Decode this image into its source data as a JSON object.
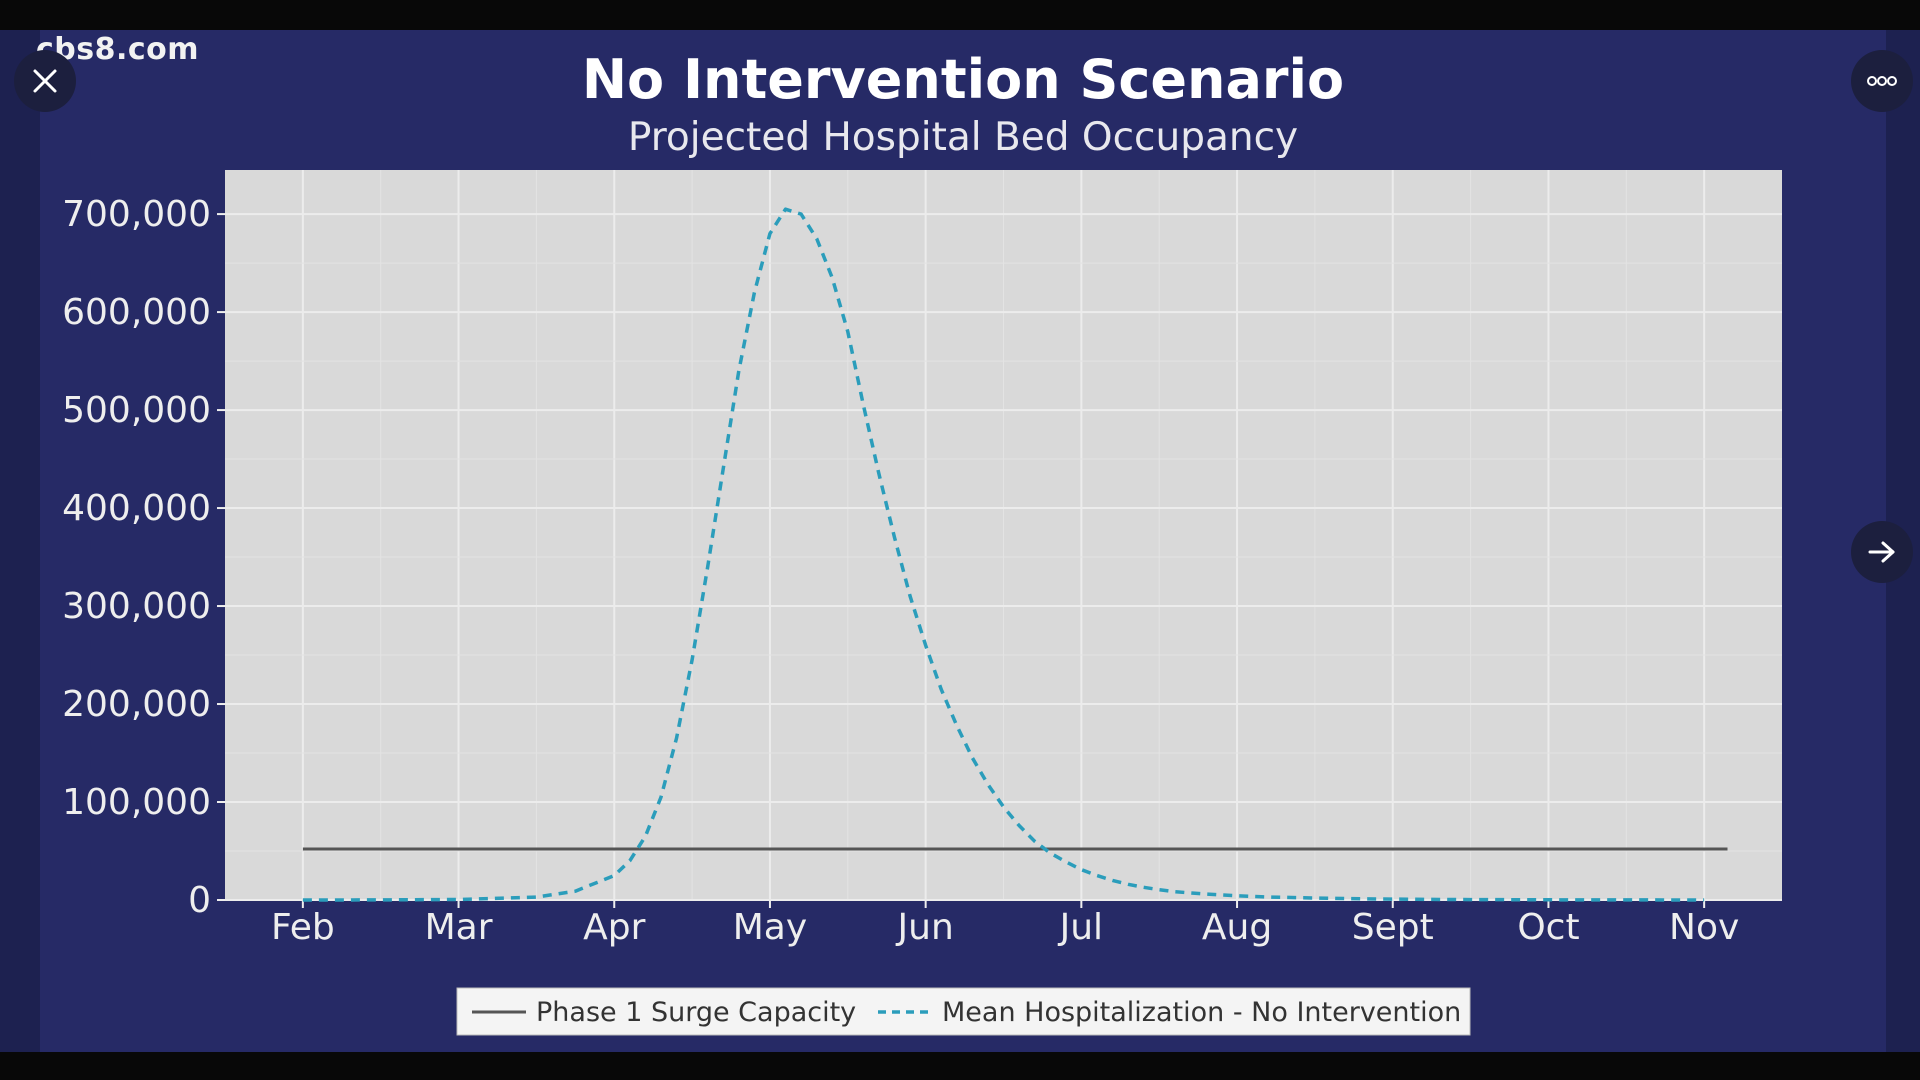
{
  "viewer": {
    "watermark": "cbs8.com",
    "close_icon": "close-icon",
    "more_icon": "more-dots-icon",
    "next_icon": "arrow-right-icon"
  },
  "colors": {
    "slide_background": "#262a66",
    "plot_background": "#d9d9d9",
    "capacity_line": "#555555",
    "hospitalization_line": "#2b9dbb"
  },
  "chart_data": {
    "type": "line",
    "title": "No Intervention Scenario",
    "subtitle": "Projected Hospital Bed Occupancy",
    "xlabel": "",
    "ylabel": "",
    "x_tick_labels": [
      "Feb",
      "Mar",
      "Apr",
      "May",
      "Jun",
      "Jul",
      "Aug",
      "Sept",
      "Oct",
      "Nov"
    ],
    "y_tick_values": [
      0,
      100000,
      200000,
      300000,
      400000,
      500000,
      600000,
      700000
    ],
    "y_tick_labels": [
      "0",
      "100,000",
      "200,000",
      "300,000",
      "400,000",
      "500,000",
      "600,000",
      "700,000"
    ],
    "ylim": [
      0,
      745000
    ],
    "xlim": [
      -0.5,
      9.5
    ],
    "grid": true,
    "legend_position": "bottom",
    "series": [
      {
        "name": "Phase 1 Surge Capacity",
        "style": "solid",
        "color": "#555555",
        "x": [
          0,
          9.15
        ],
        "y": [
          52000,
          52000
        ]
      },
      {
        "name": "Mean Hospitalization - No Intervention",
        "style": "dashed",
        "color": "#2b9dbb",
        "x": [
          0,
          0.5,
          1.0,
          1.5,
          1.75,
          2.0,
          2.1,
          2.2,
          2.3,
          2.4,
          2.5,
          2.6,
          2.7,
          2.8,
          2.9,
          3.0,
          3.1,
          3.2,
          3.3,
          3.4,
          3.5,
          3.6,
          3.7,
          3.8,
          3.9,
          4.0,
          4.1,
          4.2,
          4.3,
          4.4,
          4.5,
          4.6,
          4.7,
          4.8,
          4.9,
          5.0,
          5.1,
          5.2,
          5.3,
          5.4,
          5.5,
          5.6,
          5.8,
          6.0,
          6.2,
          6.4,
          6.6,
          6.8,
          7.0,
          7.25,
          7.5,
          8.0,
          8.5,
          9.0
        ],
        "y": [
          0,
          100,
          500,
          3000,
          9000,
          25000,
          40000,
          65000,
          105000,
          165000,
          245000,
          340000,
          440000,
          540000,
          620000,
          680000,
          705000,
          700000,
          675000,
          635000,
          580000,
          505000,
          435000,
          370000,
          310000,
          260000,
          215000,
          178000,
          145000,
          118000,
          95000,
          76000,
          60000,
          48000,
          39000,
          31000,
          25000,
          20000,
          16000,
          13000,
          10500,
          8500,
          6000,
          4300,
          3100,
          2300,
          1700,
          1200,
          900,
          600,
          400,
          200,
          100,
          50
        ]
      }
    ]
  }
}
